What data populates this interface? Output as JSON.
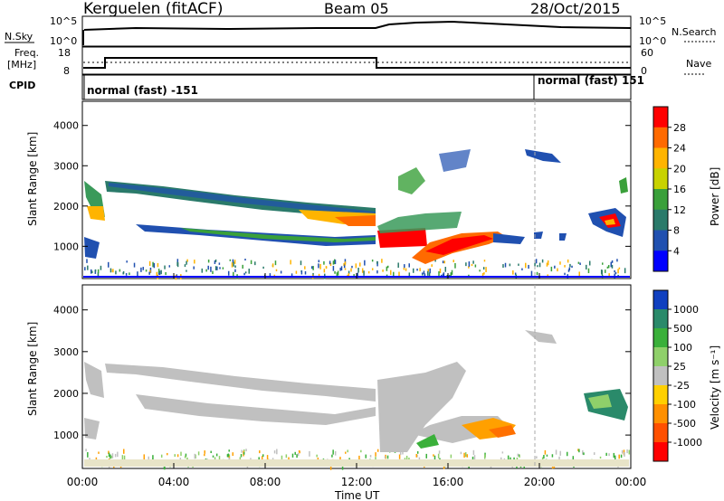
{
  "header": {
    "station": "Kerguelen (fitACF)",
    "beam": "Beam 05",
    "date": "28/Oct/2015"
  },
  "sky_panel": {
    "left_label": "N.Sky",
    "right_label": "N.Search",
    "left_ticks": [
      "10^5",
      "10^0"
    ],
    "right_ticks": [
      "10^5",
      "10^0"
    ]
  },
  "freq_panel": {
    "left_label_line1": "Freq.",
    "left_label_line2": "[MHz]",
    "left_ticks": [
      "18",
      "8"
    ],
    "right_ticks": [
      "60",
      "0"
    ],
    "right_label": "Nave"
  },
  "cpid": {
    "label": "CPID",
    "mode_1": "normal (fast) -151",
    "mode_2": "normal (fast) 151"
  },
  "chart_data": [
    {
      "type": "heatmap",
      "title": "",
      "ylabel": "Slant Range [km]",
      "ylim": [
        200,
        4600
      ],
      "yticks": [
        "1000",
        "2000",
        "3000",
        "4000"
      ],
      "colorbar_label": "Power [dB]",
      "colorbar_ticks": [
        "28",
        "24",
        "20",
        "16",
        "12",
        "8",
        "4"
      ],
      "colorbar_colors": [
        "#ff0000",
        "#ff6a00",
        "#ffb400",
        "#c8d200",
        "#3aa03a",
        "#2a7a6a",
        "#2050b0",
        "#0000ff"
      ],
      "features": [
        {
          "x": [
            0.0,
            1.0
          ],
          "y_km": [
            1700,
            2200
          ],
          "level": "moderate"
        },
        {
          "x": [
            1.0,
            13.0
          ],
          "y_km": [
            2000,
            2700
          ],
          "level": "low-moderate"
        },
        {
          "x": [
            7.0,
            13.0
          ],
          "y_km": [
            1400,
            1900
          ],
          "level": "moderate"
        },
        {
          "x": [
            13.0,
            15.0
          ],
          "y_km": [
            900,
            1300
          ],
          "level": "high"
        },
        {
          "x": [
            15.5,
            18.5
          ],
          "y_km": [
            700,
            1300
          ],
          "level": "high"
        },
        {
          "x": [
            22.5,
            24.0
          ],
          "y_km": [
            1200,
            1800
          ],
          "level": "moderate"
        }
      ]
    },
    {
      "type": "heatmap",
      "title": "",
      "ylabel": "Slant Range [km]",
      "ylim": [
        200,
        4600
      ],
      "yticks": [
        "1000",
        "2000",
        "3000",
        "4000"
      ],
      "colorbar_label": "Velocity [m s⁻¹]",
      "colorbar_ticks": [
        "1000",
        "500",
        "100",
        "25",
        "-25",
        "-100",
        "-500",
        "-1000"
      ],
      "colorbar_colors": [
        "#1040c0",
        "#2a8a6a",
        "#3ab03a",
        "#8fd06a",
        "#c0c0c0",
        "#ffd000",
        "#ff9000",
        "#ff5000",
        "#ff0000"
      ],
      "features": [
        {
          "x": [
            1.0,
            13.0
          ],
          "y_km": [
            2000,
            2700
          ],
          "level": "ground-scatter"
        },
        {
          "x": [
            13.0,
            16.0
          ],
          "y_km": [
            500,
            2200
          ],
          "level": "ground-scatter"
        },
        {
          "x": [
            16.5,
            18.5
          ],
          "y_km": [
            900,
            1400
          ],
          "level": "-100"
        },
        {
          "x": [
            22.5,
            24.0
          ],
          "y_km": [
            1300,
            1800
          ],
          "level": "100"
        }
      ]
    }
  ],
  "x_axis": {
    "label": "Time UT",
    "ticks": [
      "00:00",
      "04:00",
      "08:00",
      "12:00",
      "16:00",
      "20:00",
      "00:00"
    ],
    "range_hours": [
      0,
      24
    ]
  },
  "colors": {
    "ground_scatter": "#c0c0c0",
    "axis": "#000000"
  }
}
